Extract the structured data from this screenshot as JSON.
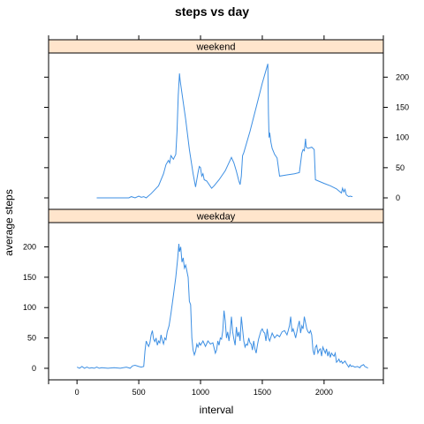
{
  "chart_data": {
    "type": "line",
    "title": "steps vs day",
    "xlabel": "interval",
    "ylabel": "average steps",
    "xlim": [
      -230,
      2480
    ],
    "ylim": [
      -19,
      240
    ],
    "x_ticks": [
      0,
      500,
      1000,
      1500,
      2000
    ],
    "y_ticks": [
      0,
      50,
      100,
      150,
      200
    ],
    "strip_color": "#ffe5cc",
    "line_color": "#3d8fe3",
    "panels": [
      {
        "strip_label": "weekend",
        "points": [
          [
            160,
            0
          ],
          [
            300,
            0
          ],
          [
            420,
            0
          ],
          [
            440,
            2
          ],
          [
            470,
            0
          ],
          [
            500,
            3
          ],
          [
            520,
            1
          ],
          [
            540,
            2
          ],
          [
            560,
            0
          ],
          [
            600,
            7
          ],
          [
            660,
            20
          ],
          [
            700,
            40
          ],
          [
            720,
            55
          ],
          [
            740,
            62
          ],
          [
            750,
            58
          ],
          [
            760,
            70
          ],
          [
            780,
            64
          ],
          [
            800,
            72
          ],
          [
            810,
            110
          ],
          [
            820,
            170
          ],
          [
            830,
            206
          ],
          [
            835,
            195
          ],
          [
            880,
            130
          ],
          [
            910,
            80
          ],
          [
            940,
            40
          ],
          [
            960,
            18
          ],
          [
            980,
            42
          ],
          [
            990,
            52
          ],
          [
            1000,
            50
          ],
          [
            1010,
            36
          ],
          [
            1020,
            40
          ],
          [
            1030,
            30
          ],
          [
            1050,
            28
          ],
          [
            1070,
            22
          ],
          [
            1090,
            16
          ],
          [
            1110,
            20
          ],
          [
            1150,
            30
          ],
          [
            1200,
            45
          ],
          [
            1250,
            67
          ],
          [
            1270,
            58
          ],
          [
            1290,
            44
          ],
          [
            1310,
            28
          ],
          [
            1320,
            22
          ],
          [
            1330,
            36
          ],
          [
            1340,
            70
          ],
          [
            1350,
            75
          ],
          [
            1400,
            110
          ],
          [
            1450,
            150
          ],
          [
            1500,
            190
          ],
          [
            1545,
            222
          ],
          [
            1550,
            140
          ],
          [
            1555,
            100
          ],
          [
            1560,
            108
          ],
          [
            1570,
            92
          ],
          [
            1580,
            82
          ],
          [
            1600,
            72
          ],
          [
            1620,
            66
          ],
          [
            1640,
            36
          ],
          [
            1700,
            38
          ],
          [
            1760,
            40
          ],
          [
            1800,
            42
          ],
          [
            1820,
            74
          ],
          [
            1830,
            80
          ],
          [
            1840,
            78
          ],
          [
            1850,
            98
          ],
          [
            1855,
            84
          ],
          [
            1870,
            82
          ],
          [
            1900,
            84
          ],
          [
            1920,
            80
          ],
          [
            1930,
            30
          ],
          [
            2000,
            24
          ],
          [
            2050,
            20
          ],
          [
            2100,
            15
          ],
          [
            2140,
            8
          ],
          [
            2150,
            16
          ],
          [
            2160,
            10
          ],
          [
            2170,
            14
          ],
          [
            2180,
            5
          ],
          [
            2200,
            2
          ],
          [
            2210,
            3
          ],
          [
            2230,
            2
          ]
        ]
      },
      {
        "strip_label": "weekday",
        "points": [
          [
            0,
            2
          ],
          [
            20,
            0
          ],
          [
            40,
            3
          ],
          [
            60,
            0
          ],
          [
            80,
            2
          ],
          [
            100,
            0
          ],
          [
            120,
            1
          ],
          [
            140,
            0
          ],
          [
            160,
            2
          ],
          [
            180,
            0
          ],
          [
            200,
            1
          ],
          [
            250,
            0
          ],
          [
            300,
            1
          ],
          [
            350,
            0
          ],
          [
            400,
            2
          ],
          [
            430,
            0
          ],
          [
            450,
            4
          ],
          [
            470,
            5
          ],
          [
            500,
            3
          ],
          [
            520,
            2
          ],
          [
            540,
            3
          ],
          [
            550,
            28
          ],
          [
            560,
            45
          ],
          [
            570,
            40
          ],
          [
            580,
            36
          ],
          [
            590,
            42
          ],
          [
            600,
            55
          ],
          [
            610,
            62
          ],
          [
            620,
            48
          ],
          [
            630,
            44
          ],
          [
            640,
            50
          ],
          [
            650,
            38
          ],
          [
            660,
            45
          ],
          [
            670,
            42
          ],
          [
            680,
            55
          ],
          [
            690,
            46
          ],
          [
            700,
            40
          ],
          [
            710,
            50
          ],
          [
            720,
            47
          ],
          [
            730,
            60
          ],
          [
            745,
            70
          ],
          [
            760,
            90
          ],
          [
            780,
            120
          ],
          [
            800,
            150
          ],
          [
            815,
            180
          ],
          [
            825,
            205
          ],
          [
            830,
            192
          ],
          [
            840,
            200
          ],
          [
            850,
            175
          ],
          [
            860,
            182
          ],
          [
            870,
            165
          ],
          [
            880,
            170
          ],
          [
            900,
            150
          ],
          [
            910,
            110
          ],
          [
            920,
            105
          ],
          [
            930,
            50
          ],
          [
            940,
            30
          ],
          [
            950,
            22
          ],
          [
            960,
            28
          ],
          [
            970,
            40
          ],
          [
            980,
            35
          ],
          [
            990,
            42
          ],
          [
            1000,
            38
          ],
          [
            1020,
            45
          ],
          [
            1040,
            36
          ],
          [
            1060,
            45
          ],
          [
            1080,
            40
          ],
          [
            1100,
            42
          ],
          [
            1120,
            25
          ],
          [
            1130,
            30
          ],
          [
            1140,
            45
          ],
          [
            1150,
            38
          ],
          [
            1160,
            50
          ],
          [
            1170,
            48
          ],
          [
            1180,
            62
          ],
          [
            1190,
            95
          ],
          [
            1200,
            78
          ],
          [
            1210,
            50
          ],
          [
            1220,
            60
          ],
          [
            1230,
            45
          ],
          [
            1240,
            60
          ],
          [
            1250,
            85
          ],
          [
            1260,
            60
          ],
          [
            1270,
            48
          ],
          [
            1280,
            38
          ],
          [
            1290,
            68
          ],
          [
            1300,
            52
          ],
          [
            1310,
            60
          ],
          [
            1320,
            45
          ],
          [
            1330,
            85
          ],
          [
            1340,
            65
          ],
          [
            1350,
            45
          ],
          [
            1360,
            35
          ],
          [
            1370,
            40
          ],
          [
            1380,
            38
          ],
          [
            1390,
            50
          ],
          [
            1400,
            42
          ],
          [
            1410,
            40
          ],
          [
            1420,
            30
          ],
          [
            1430,
            45
          ],
          [
            1440,
            32
          ],
          [
            1450,
            25
          ],
          [
            1460,
            38
          ],
          [
            1470,
            48
          ],
          [
            1480,
            55
          ],
          [
            1490,
            62
          ],
          [
            1500,
            65
          ],
          [
            1510,
            60
          ],
          [
            1520,
            58
          ],
          [
            1530,
            45
          ],
          [
            1540,
            65
          ],
          [
            1550,
            50
          ],
          [
            1560,
            45
          ],
          [
            1580,
            58
          ],
          [
            1600,
            50
          ],
          [
            1620,
            55
          ],
          [
            1640,
            52
          ],
          [
            1660,
            60
          ],
          [
            1680,
            62
          ],
          [
            1700,
            55
          ],
          [
            1710,
            62
          ],
          [
            1720,
            70
          ],
          [
            1730,
            85
          ],
          [
            1740,
            60
          ],
          [
            1750,
            65
          ],
          [
            1760,
            58
          ],
          [
            1770,
            50
          ],
          [
            1780,
            60
          ],
          [
            1790,
            70
          ],
          [
            1800,
            78
          ],
          [
            1810,
            58
          ],
          [
            1820,
            70
          ],
          [
            1830,
            65
          ],
          [
            1840,
            85
          ],
          [
            1850,
            75
          ],
          [
            1860,
            65
          ],
          [
            1870,
            60
          ],
          [
            1880,
            58
          ],
          [
            1890,
            62
          ],
          [
            1900,
            55
          ],
          [
            1910,
            30
          ],
          [
            1920,
            22
          ],
          [
            1930,
            35
          ],
          [
            1940,
            38
          ],
          [
            1950,
            25
          ],
          [
            1960,
            30
          ],
          [
            1970,
            32
          ],
          [
            1980,
            20
          ],
          [
            1990,
            35
          ],
          [
            2000,
            30
          ],
          [
            2010,
            25
          ],
          [
            2020,
            32
          ],
          [
            2030,
            20
          ],
          [
            2040,
            28
          ],
          [
            2050,
            18
          ],
          [
            2060,
            25
          ],
          [
            2070,
            22
          ],
          [
            2080,
            20
          ],
          [
            2090,
            25
          ],
          [
            2100,
            10
          ],
          [
            2110,
            12
          ],
          [
            2120,
            15
          ],
          [
            2130,
            10
          ],
          [
            2140,
            12
          ],
          [
            2150,
            8
          ],
          [
            2160,
            10
          ],
          [
            2170,
            12
          ],
          [
            2180,
            8
          ],
          [
            2190,
            5
          ],
          [
            2200,
            2
          ],
          [
            2210,
            6
          ],
          [
            2220,
            3
          ],
          [
            2230,
            4
          ],
          [
            2250,
            2
          ],
          [
            2270,
            3
          ],
          [
            2290,
            1
          ],
          [
            2300,
            4
          ],
          [
            2320,
            6
          ],
          [
            2330,
            3
          ],
          [
            2340,
            2
          ],
          [
            2350,
            1
          ],
          [
            2355,
            0
          ]
        ]
      }
    ]
  }
}
